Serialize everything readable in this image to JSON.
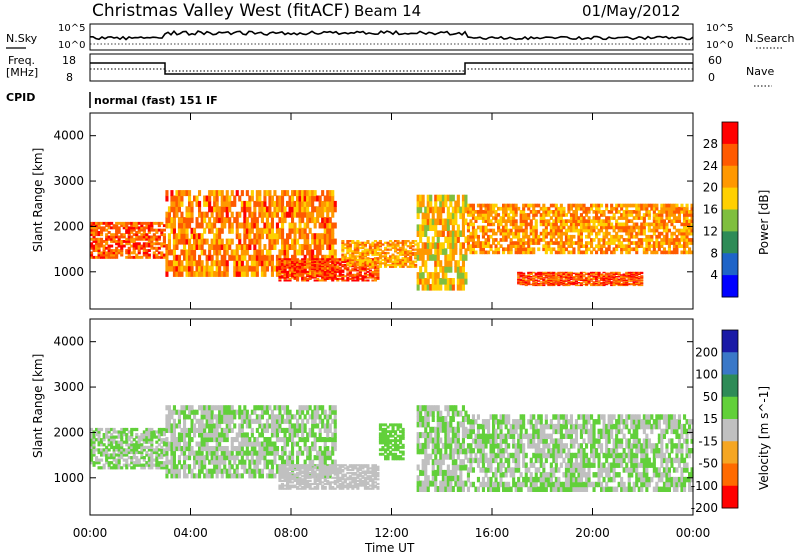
{
  "header": {
    "station": "Christmas Valley West (fitACF)",
    "beam": "Beam 14",
    "date": "01/May/2012"
  },
  "params": {
    "nsky_label": "N.Sky",
    "nsearch_label": "N.Search",
    "nsky_ticks": [
      "10^5",
      "10^0"
    ],
    "nsky_ticks_right": [
      "10^5",
      "10^0"
    ],
    "freq_label_1": "Freq.",
    "freq_label_2": "[MHz]",
    "freq_ticks": [
      "18",
      "8"
    ],
    "nave_label": "Nave",
    "nave_ticks": [
      "60",
      "0"
    ],
    "cpid_label": "CPID",
    "cpid_value": "normal (fast) 151 IF"
  },
  "chart_data": [
    {
      "type": "heatmap",
      "title": "",
      "xlabel": "",
      "ylabel": "Slant Range [km]",
      "x_ticks": [
        "00:00",
        "04:00",
        "08:00",
        "12:00",
        "16:00",
        "20:00",
        "00:00"
      ],
      "y_ticks": [
        1000,
        2000,
        3000,
        4000
      ],
      "ylim": [
        180,
        4500
      ],
      "xlim_hours": [
        0,
        24
      ],
      "colorbar": {
        "label": "Power [dB]",
        "ticks": [
          "28",
          "24",
          "20",
          "16",
          "12",
          "8",
          "4"
        ],
        "range": [
          0,
          30
        ],
        "colors": [
          "#ff0000",
          "#ff5a00",
          "#ff9800",
          "#ffd000",
          "#7fbf3f",
          "#2e8b57",
          "#1e64c8",
          "#0000ff"
        ]
      },
      "bands": [
        {
          "t0": 0.0,
          "t1": 3.0,
          "r0": 1300,
          "r1": 2100,
          "value": 24
        },
        {
          "t0": 3.0,
          "t1": 9.8,
          "r0": 900,
          "r1": 2800,
          "value": 22
        },
        {
          "t0": 7.5,
          "t1": 11.5,
          "r0": 800,
          "r1": 1300,
          "value": 26
        },
        {
          "t0": 10.0,
          "t1": 13.0,
          "r0": 1100,
          "r1": 1700,
          "value": 20
        },
        {
          "t0": 13.0,
          "t1": 15.0,
          "r0": 600,
          "r1": 2700,
          "value": 18
        },
        {
          "t0": 15.0,
          "t1": 24.0,
          "r0": 1400,
          "r1": 2500,
          "value": 21
        },
        {
          "t0": 17.0,
          "t1": 22.0,
          "r0": 700,
          "r1": 1000,
          "value": 25
        }
      ]
    },
    {
      "type": "heatmap",
      "title": "",
      "xlabel": "Time UT",
      "ylabel": "Slant Range [km]",
      "x_ticks": [
        "00:00",
        "04:00",
        "08:00",
        "12:00",
        "16:00",
        "20:00",
        "00:00"
      ],
      "y_ticks": [
        1000,
        2000,
        3000,
        4000
      ],
      "ylim": [
        180,
        4500
      ],
      "xlim_hours": [
        0,
        24
      ],
      "colorbar": {
        "label": "Velocity [m s^-1]",
        "ticks": [
          "200",
          "100",
          "50",
          "15",
          "-15",
          "-50",
          "-100",
          "-200"
        ],
        "range": [
          -250,
          250
        ],
        "colors": [
          "#1a1aa6",
          "#3a78c8",
          "#2e8b57",
          "#62d03a",
          "#c0c0c0",
          "#f5a623",
          "#ff6a00",
          "#ff0000"
        ]
      },
      "bands": [
        {
          "t0": 0.0,
          "t1": 3.0,
          "r0": 1200,
          "r1": 2100,
          "value": 0
        },
        {
          "t0": 3.0,
          "t1": 9.8,
          "r0": 1000,
          "r1": 2600,
          "value": 0
        },
        {
          "t0": 7.5,
          "t1": 11.5,
          "r0": 750,
          "r1": 1300,
          "value": -40
        },
        {
          "t0": 11.5,
          "t1": 12.5,
          "r0": 1400,
          "r1": 2200,
          "value": 30
        },
        {
          "t0": 13.0,
          "t1": 15.0,
          "r0": 700,
          "r1": 2600,
          "value": 0
        },
        {
          "t0": 15.0,
          "t1": 24.0,
          "r0": 700,
          "r1": 2400,
          "value": 0
        }
      ]
    }
  ]
}
